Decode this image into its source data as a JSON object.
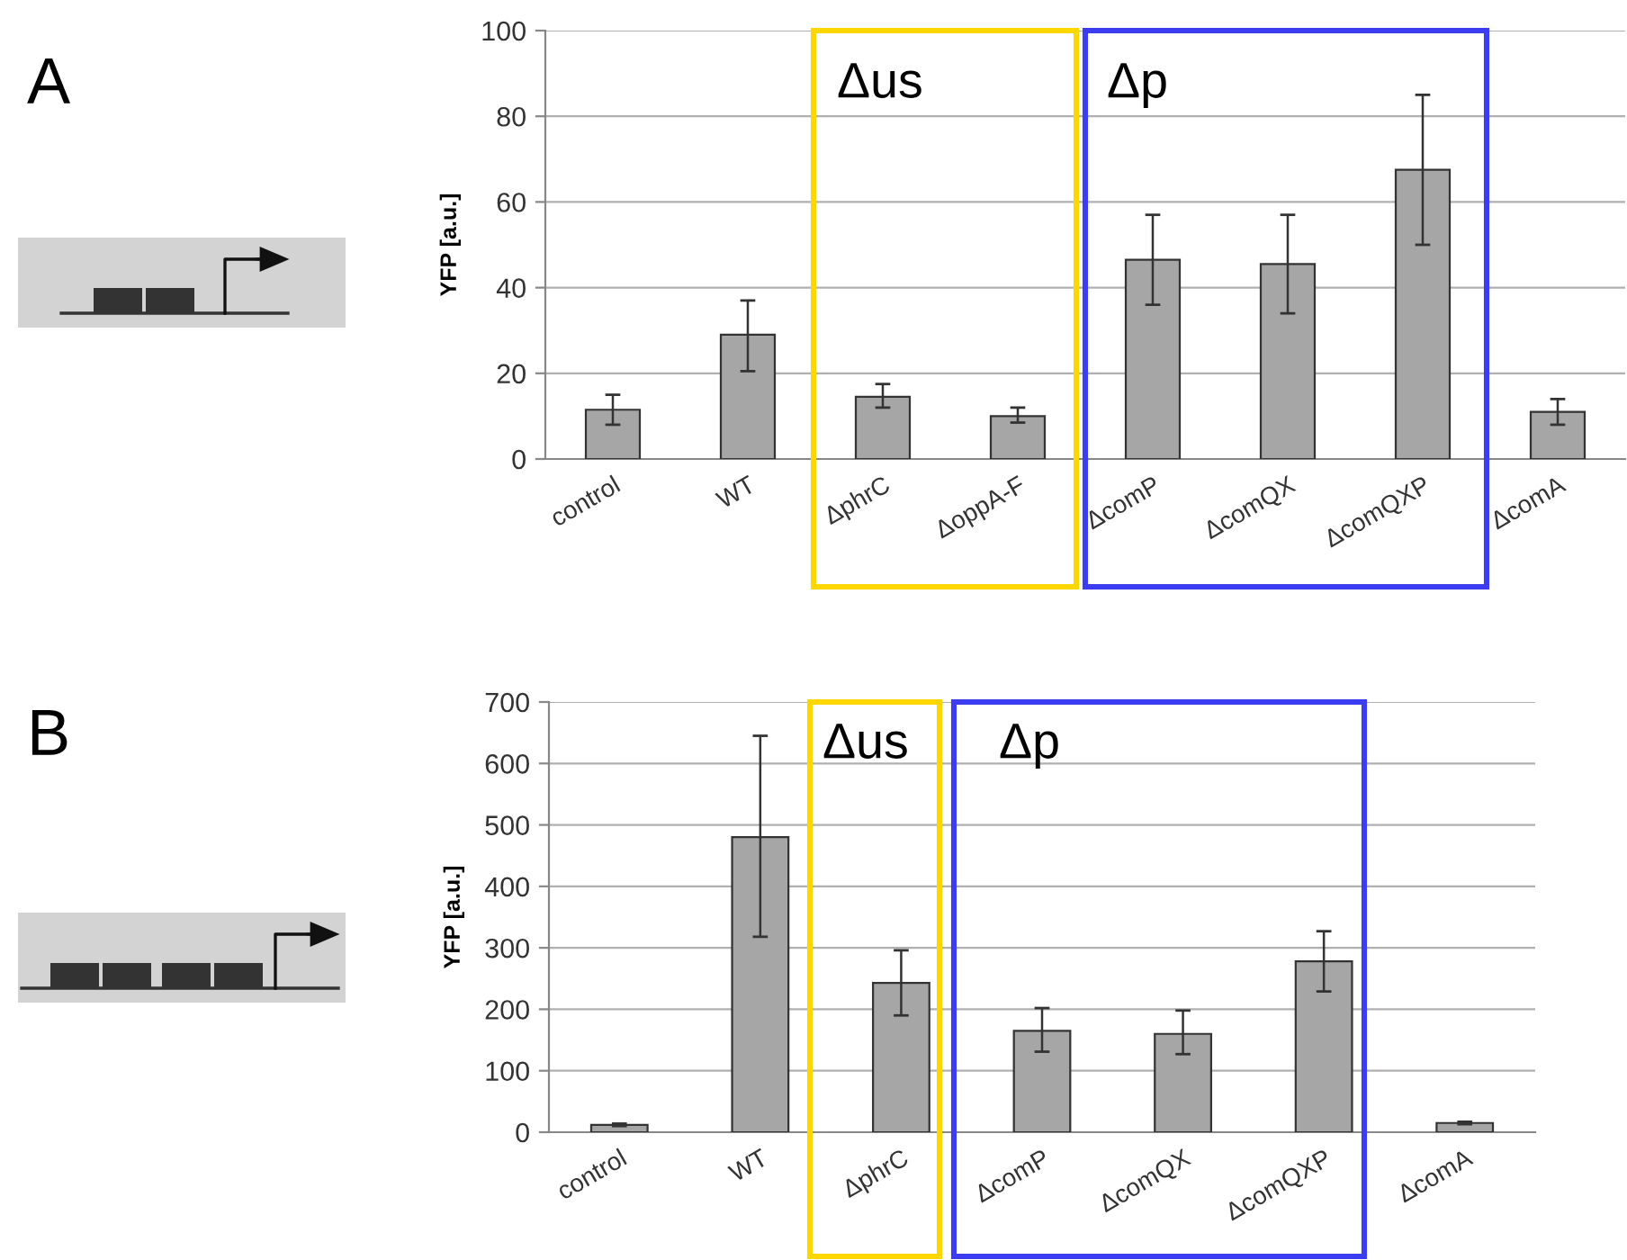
{
  "chart_data": [
    {
      "type": "bar",
      "ylabel": "YFP [a.u.]",
      "annotations": [
        "A",
        "Δus",
        "Δp"
      ],
      "categories": [
        "control",
        "WT",
        "ΔphrC",
        "ΔoppA-F",
        "ΔcomP",
        "ΔcomQX",
        "ΔcomQXP",
        "ΔcomA"
      ],
      "series": [
        {
          "color": "#a6a6a6",
          "values": [
            11.5,
            29,
            14.5,
            10,
            46.5,
            45.5,
            67.5,
            11
          ],
          "errors": [
            [
              8,
              15
            ],
            [
              20.5,
              37
            ],
            [
              12,
              17.5
            ],
            [
              8.5,
              12
            ],
            [
              36,
              57
            ],
            [
              34,
              57
            ],
            [
              50,
              85
            ],
            [
              8,
              14
            ]
          ]
        }
      ],
      "ylim": [
        0,
        100
      ],
      "yticks": [
        0,
        20,
        40,
        60,
        80,
        100
      ],
      "grid": "y"
    },
    {
      "type": "bar",
      "ylabel": "YFP [a.u.]",
      "annotations": [
        "B",
        "Δus",
        "Δp"
      ],
      "categories": [
        "control",
        "WT",
        "ΔphrC",
        "ΔcomP",
        "ΔcomQX",
        "ΔcomQXP",
        "ΔcomA"
      ],
      "series": [
        {
          "color": "#a6a6a6",
          "values": [
            12,
            480,
            243,
            165,
            160,
            278,
            15
          ],
          "errors": [
            [
              10,
              14
            ],
            [
              318,
              645
            ],
            [
              190,
              296
            ],
            [
              131,
              202
            ],
            [
              127,
              198
            ],
            [
              229,
              327
            ],
            [
              13,
              17
            ]
          ]
        }
      ],
      "ylim": [
        0,
        700
      ],
      "yticks": [
        0,
        100,
        200,
        300,
        400,
        500,
        600,
        700
      ],
      "grid": "y"
    }
  ]
}
